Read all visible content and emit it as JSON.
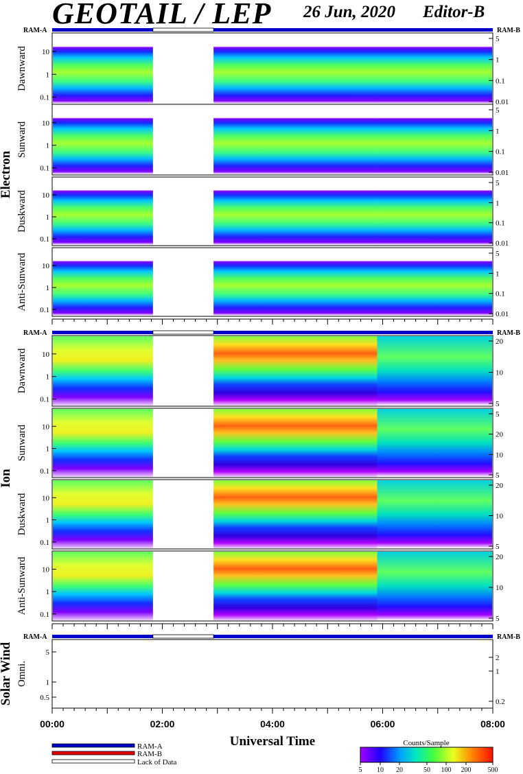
{
  "header": {
    "title": "GEOTAIL / LEP",
    "date": "26 Jun, 2020",
    "editor": "Editor-B"
  },
  "legend": {
    "items": [
      {
        "label": "RAM-A",
        "color": "#0000c8"
      },
      {
        "label": "RAM-B",
        "color": "#e00000"
      },
      {
        "label": "Lack of Data",
        "color": "#ffffff"
      }
    ]
  },
  "colorbar": {
    "title": "Counts/Sample",
    "ticks": [
      "5",
      "10",
      "20",
      "50",
      "100",
      "200",
      "500"
    ]
  },
  "chart_data": {
    "type": "heatmap",
    "xlabel": "Universal Time",
    "x_ticks": [
      "00:00",
      "02:00",
      "04:00",
      "06:00",
      "08:00"
    ],
    "x_range_hours": [
      0,
      8
    ],
    "data_gap_hours": [
      1.83,
      2.93
    ],
    "mode_bar": {
      "left_label": "RAM-A",
      "right_label": "RAM-B"
    },
    "groups": [
      {
        "name": "Electron",
        "panels": [
          {
            "label": "Dawnward",
            "yticks": [
              "10",
              "1",
              "0.1"
            ],
            "ryticks": [
              "5",
              "1",
              "0.1",
              "0.01"
            ]
          },
          {
            "label": "Sunward",
            "yticks": [
              "10",
              "1",
              "0.1"
            ],
            "ryticks": [
              "5",
              "1",
              "0.1",
              "0.01"
            ]
          },
          {
            "label": "Duskward",
            "yticks": [
              "10",
              "1",
              "0.1"
            ],
            "ryticks": [
              "5",
              "1",
              "0.1",
              "0.01"
            ]
          },
          {
            "label": "Anti-Sunward",
            "yticks": [
              "10",
              "1",
              "0.1"
            ],
            "ryticks": [
              "5",
              "1",
              "0.1",
              "0.01"
            ]
          }
        ]
      },
      {
        "name": "Ion",
        "panels": [
          {
            "label": "Dawnward",
            "yticks": [
              "10",
              "1",
              "0.1"
            ],
            "ryticks": [
              "20",
              "10",
              "5"
            ]
          },
          {
            "label": "Sunward",
            "yticks": [
              "10",
              "1",
              "0.1"
            ],
            "ryticks": [
              "5",
              "20",
              "10",
              "5"
            ]
          },
          {
            "label": "Duskward",
            "yticks": [
              "10",
              "1",
              "0.1"
            ],
            "ryticks": [
              "20",
              "10",
              "5"
            ]
          },
          {
            "label": "Anti-Sunward",
            "yticks": [
              "10",
              "1",
              "0.1"
            ],
            "ryticks": [
              "20",
              "10",
              "5"
            ]
          }
        ]
      },
      {
        "name": "Solar Wind",
        "panels": [
          {
            "label": "Omni.",
            "yticks": [
              "5",
              "1",
              "0.5"
            ],
            "ryticks": [
              "2",
              "1",
              "0.2"
            ]
          }
        ]
      }
    ]
  }
}
